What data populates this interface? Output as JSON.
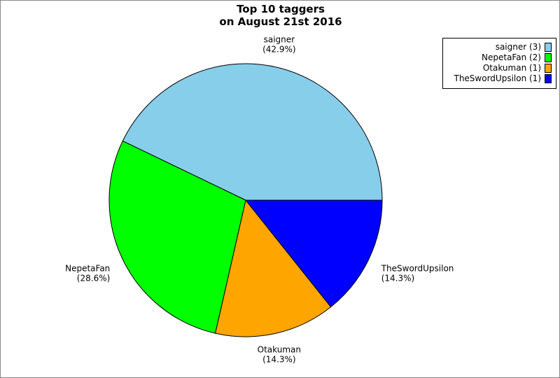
{
  "chart_data": {
    "type": "pie",
    "title": [
      "Top 10 taggers",
      "on August 21st 2016"
    ],
    "slices": [
      {
        "label": "saigner",
        "value": 3,
        "percent": "(42.9%)",
        "legend": "saigner (3)",
        "color": "#87ceeb"
      },
      {
        "label": "NepetaFan",
        "value": 2,
        "percent": "(28.6%)",
        "legend": "NepetaFan (2)",
        "color": "#00ff00"
      },
      {
        "label": "Otakuman",
        "value": 1,
        "percent": "(14.3%)",
        "legend": "Otakuman (1)",
        "color": "#ffa500"
      },
      {
        "label": "TheSwordUpsilon",
        "value": 1,
        "percent": "(14.3%)",
        "legend": "TheSwordUpsilon (1)",
        "color": "#0000ff"
      }
    ],
    "start_angle_deg": 0,
    "direction": "counterclockwise",
    "legend_position": "top-right"
  }
}
